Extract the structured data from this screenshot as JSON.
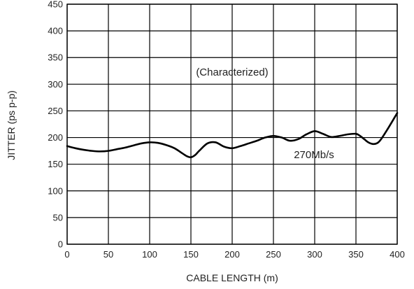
{
  "chart_data": {
    "type": "line",
    "title": "",
    "xlabel": "CABLE LENGTH (m)",
    "ylabel": "JITTER (ps p-p)",
    "xlim": [
      0,
      400
    ],
    "ylim": [
      0,
      450
    ],
    "xticks": [
      0,
      50,
      100,
      150,
      200,
      250,
      300,
      350,
      400
    ],
    "yticks": [
      0,
      50,
      100,
      150,
      200,
      250,
      300,
      350,
      400,
      450
    ],
    "grid": true,
    "annotations": [
      "(Characterized)"
    ],
    "series": [
      {
        "name": "270Mb/s",
        "x": [
          0,
          10,
          20,
          30,
          40,
          50,
          60,
          70,
          80,
          90,
          100,
          110,
          120,
          130,
          140,
          145,
          150,
          155,
          160,
          170,
          180,
          190,
          200,
          210,
          220,
          230,
          240,
          250,
          260,
          270,
          280,
          290,
          300,
          310,
          320,
          330,
          340,
          350,
          355,
          360,
          365,
          370,
          375,
          380,
          390,
          400
        ],
        "y": [
          184,
          180,
          177,
          175,
          174,
          175,
          178,
          181,
          185,
          189,
          191,
          190,
          186,
          180,
          170,
          165,
          163,
          167,
          175,
          189,
          191,
          183,
          180,
          184,
          189,
          194,
          200,
          203,
          200,
          194,
          197,
          206,
          212,
          207,
          201,
          203,
          206,
          207,
          203,
          197,
          191,
          188,
          189,
          196,
          220,
          246
        ]
      }
    ]
  }
}
